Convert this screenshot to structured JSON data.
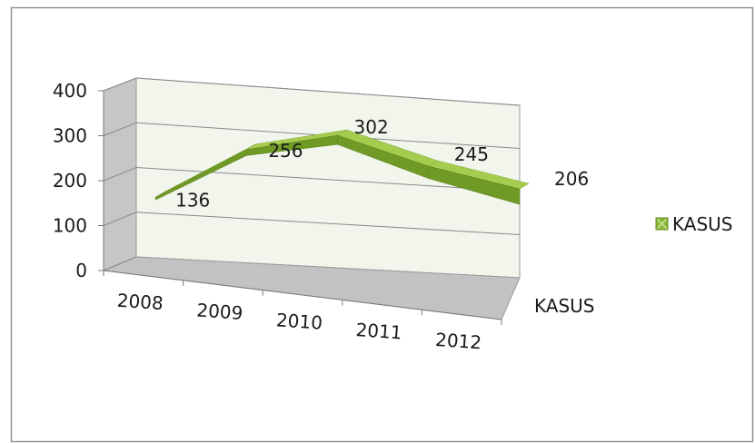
{
  "chart_data": {
    "type": "line",
    "style": "3d-ribbon",
    "categories": [
      "2008",
      "2009",
      "2010",
      "2011",
      "2012"
    ],
    "series": [
      {
        "name": "KASUS",
        "values": [
          136,
          256,
          302,
          245,
          206
        ]
      }
    ],
    "ylim": [
      0,
      400
    ],
    "y_ticks": [
      "0",
      "100",
      "200",
      "300",
      "400"
    ],
    "depth_axis_label": "KASUS",
    "grid": true,
    "legend": {
      "position": "right",
      "entries": [
        "KASUS"
      ]
    },
    "colors": {
      "ribbon_front": "#6f9a26",
      "ribbon_top": "#a6cc4f",
      "back_wall": "#f1f5ec",
      "side_wall": "#c6c6c6",
      "floor": "#c2c2c2",
      "gridline": "#8a8a8a"
    }
  }
}
